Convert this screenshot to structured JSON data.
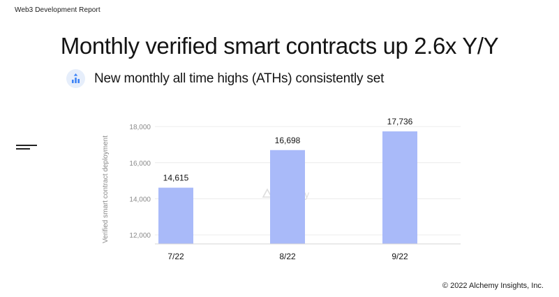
{
  "header": {
    "report_label": "Web3 Development Report"
  },
  "headline": "Monthly verified smart contracts up 2.6x Y/Y",
  "subheadline": "New monthly all time highs (ATHs) consistently set",
  "icons": {
    "subheadline_icon": "trend-up-bar-icon",
    "side_icon": "menu-lines-icon"
  },
  "watermark": "alchemy",
  "footer": {
    "copyright": "© 2022 Alchemy Insights, Inc."
  },
  "colors": {
    "bar": "#a9baf9",
    "grid": "#ececec",
    "icon_bg": "#e6eefb",
    "icon_fg": "#3b82f6"
  },
  "chart_data": {
    "type": "bar",
    "categories": [
      "7/22",
      "8/22",
      "9/22"
    ],
    "values": [
      14615,
      16698,
      17736
    ],
    "value_labels": [
      "14,615",
      "16,698",
      "17,736"
    ],
    "title": "",
    "xlabel": "",
    "ylabel": "Verified smart contract deployment",
    "ylim": [
      11500,
      18200
    ],
    "yticks": [
      12000,
      14000,
      16000,
      18000
    ],
    "ytick_labels": [
      "12,000",
      "14,000",
      "16,000",
      "18,000"
    ],
    "grid": true,
    "legend": "none"
  }
}
